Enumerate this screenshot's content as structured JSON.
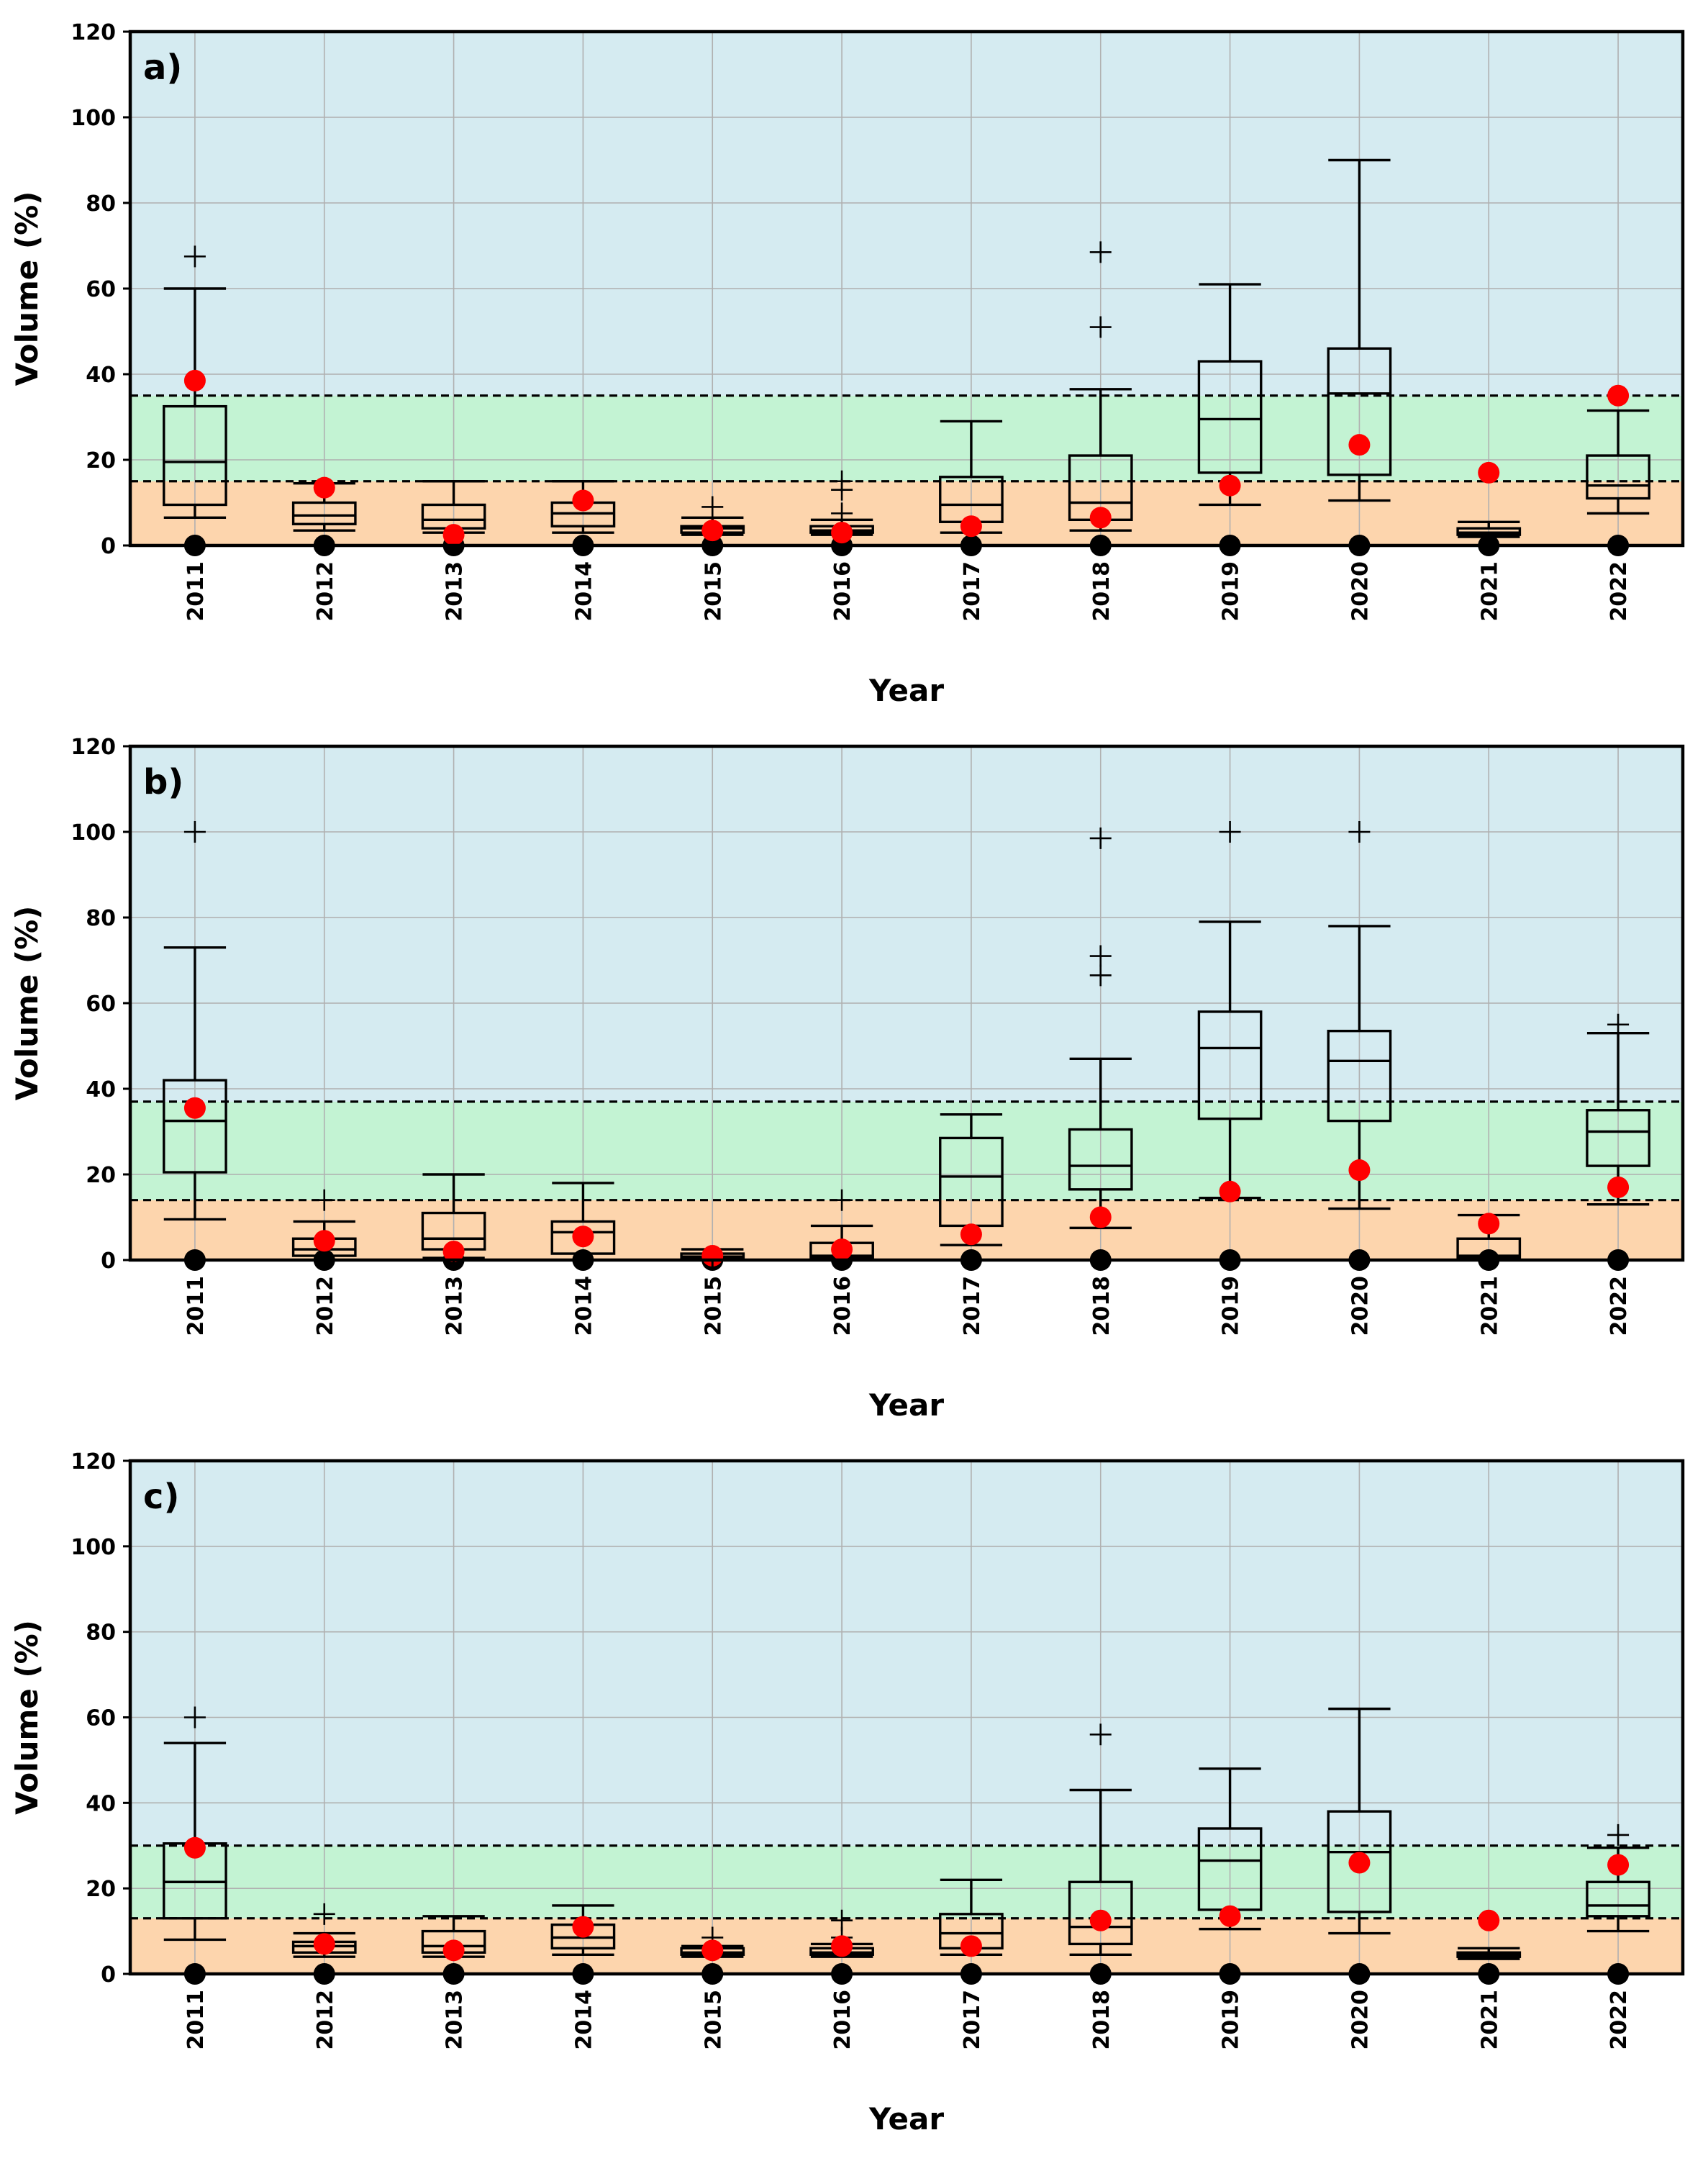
{
  "colors": {
    "band_low": "#fdd5ad",
    "band_mid": "#c3f3d3",
    "band_high": "#d5ebf1",
    "mean_marker": "#ff0000",
    "min_marker": "#000000",
    "grid": "#b0b0b0",
    "box": "#000000"
  },
  "chart_data": [
    {
      "type": "boxplot",
      "panel_label": "a)",
      "xlabel": "Year",
      "ylabel": "Volume (%)",
      "ylim": [
        0,
        120
      ],
      "yticks": [
        0,
        20,
        40,
        60,
        80,
        100,
        120
      ],
      "grid": true,
      "thresholds": [
        15,
        35
      ],
      "bands": [
        {
          "name": "low",
          "from": 0,
          "to": 15
        },
        {
          "name": "mid",
          "from": 15,
          "to": 35
        },
        {
          "name": "high",
          "from": 35,
          "to": 120
        }
      ],
      "categories": [
        "2011",
        "2012",
        "2013",
        "2014",
        "2015",
        "2016",
        "2017",
        "2018",
        "2019",
        "2020",
        "2021",
        "2022"
      ],
      "boxes": [
        {
          "q1": 9.5,
          "median": 19.5,
          "q3": 32.5,
          "whisker_low": 6.5,
          "whisker_high": 60,
          "fliers": [
            67.5
          ],
          "mean_marker": 38.5,
          "min_marker": 0
        },
        {
          "q1": 5,
          "median": 7,
          "q3": 10,
          "whisker_low": 3.5,
          "whisker_high": 14.5,
          "fliers": [],
          "mean_marker": 13.5,
          "min_marker": 0
        },
        {
          "q1": 4,
          "median": 6,
          "q3": 9.5,
          "whisker_low": 3,
          "whisker_high": 15,
          "fliers": [],
          "mean_marker": 2.5,
          "min_marker": 0
        },
        {
          "q1": 4.5,
          "median": 7.5,
          "q3": 10,
          "whisker_low": 3,
          "whisker_high": 15,
          "fliers": [],
          "mean_marker": 10.5,
          "min_marker": 0
        },
        {
          "q1": 3,
          "median": 4,
          "q3": 4.5,
          "whisker_low": 2.5,
          "whisker_high": 6.5,
          "fliers": [
            9
          ],
          "mean_marker": 3.5,
          "min_marker": 0
        },
        {
          "q1": 3,
          "median": 3.5,
          "q3": 4.5,
          "whisker_low": 2.5,
          "whisker_high": 6,
          "fliers": [
            7.5,
            13,
            15
          ],
          "mean_marker": 3,
          "min_marker": 0
        },
        {
          "q1": 5.5,
          "median": 9.5,
          "q3": 16,
          "whisker_low": 3,
          "whisker_high": 29,
          "fliers": [],
          "mean_marker": 4.5,
          "min_marker": 0
        },
        {
          "q1": 6,
          "median": 10,
          "q3": 21,
          "whisker_low": 3.5,
          "whisker_high": 36.5,
          "fliers": [
            51,
            68.5
          ],
          "mean_marker": 6.5,
          "min_marker": 0
        },
        {
          "q1": 17,
          "median": 29.5,
          "q3": 43,
          "whisker_low": 9.5,
          "whisker_high": 61,
          "fliers": [],
          "mean_marker": 14,
          "min_marker": 0
        },
        {
          "q1": 16.5,
          "median": 35.5,
          "q3": 46,
          "whisker_low": 10.5,
          "whisker_high": 90,
          "fliers": [],
          "mean_marker": 23.5,
          "min_marker": 0
        },
        {
          "q1": 2.5,
          "median": 3,
          "q3": 4,
          "whisker_low": 2,
          "whisker_high": 5.5,
          "fliers": [],
          "mean_marker": 17,
          "min_marker": 0
        },
        {
          "q1": 11,
          "median": 14,
          "q3": 21,
          "whisker_low": 7.5,
          "whisker_high": 31.5,
          "fliers": [],
          "mean_marker": 35,
          "min_marker": 0
        }
      ]
    },
    {
      "type": "boxplot",
      "panel_label": "b)",
      "xlabel": "Year",
      "ylabel": "Volume (%)",
      "ylim": [
        0,
        120
      ],
      "yticks": [
        0,
        20,
        40,
        60,
        80,
        100,
        120
      ],
      "grid": true,
      "thresholds": [
        14,
        37
      ],
      "bands": [
        {
          "name": "low",
          "from": 0,
          "to": 14
        },
        {
          "name": "mid",
          "from": 14,
          "to": 37
        },
        {
          "name": "high",
          "from": 37,
          "to": 120
        }
      ],
      "categories": [
        "2011",
        "2012",
        "2013",
        "2014",
        "2015",
        "2016",
        "2017",
        "2018",
        "2019",
        "2020",
        "2021",
        "2022"
      ],
      "boxes": [
        {
          "q1": 20.5,
          "median": 32.5,
          "q3": 42,
          "whisker_low": 9.5,
          "whisker_high": 73,
          "fliers": [
            100
          ],
          "mean_marker": 35.5,
          "min_marker": 0
        },
        {
          "q1": 1,
          "median": 2.5,
          "q3": 5,
          "whisker_low": 0,
          "whisker_high": 9,
          "fliers": [
            14
          ],
          "mean_marker": 4.5,
          "min_marker": 0
        },
        {
          "q1": 2.5,
          "median": 5,
          "q3": 11,
          "whisker_low": 0.5,
          "whisker_high": 20,
          "fliers": [],
          "mean_marker": 2,
          "min_marker": 0
        },
        {
          "q1": 1.5,
          "median": 6.5,
          "q3": 9,
          "whisker_low": 0,
          "whisker_high": 18,
          "fliers": [],
          "mean_marker": 5.5,
          "min_marker": 0
        },
        {
          "q1": 0.3,
          "median": 0.8,
          "q3": 1.5,
          "whisker_low": 0,
          "whisker_high": 2.5,
          "fliers": [],
          "mean_marker": 1,
          "min_marker": 0
        },
        {
          "q1": 0.5,
          "median": 1,
          "q3": 4,
          "whisker_low": 0,
          "whisker_high": 8,
          "fliers": [
            14
          ],
          "mean_marker": 2.5,
          "min_marker": 0
        },
        {
          "q1": 8,
          "median": 19.5,
          "q3": 28.5,
          "whisker_low": 3.5,
          "whisker_high": 34,
          "fliers": [],
          "mean_marker": 6,
          "min_marker": 0
        },
        {
          "q1": 16.5,
          "median": 22,
          "q3": 30.5,
          "whisker_low": 7.5,
          "whisker_high": 47,
          "fliers": [
            66.5,
            71,
            98.5
          ],
          "mean_marker": 10,
          "min_marker": 0
        },
        {
          "q1": 33,
          "median": 49.5,
          "q3": 58,
          "whisker_low": 14.5,
          "whisker_high": 79,
          "fliers": [
            100
          ],
          "mean_marker": 16,
          "min_marker": 0
        },
        {
          "q1": 32.5,
          "median": 46.5,
          "q3": 53.5,
          "whisker_low": 12,
          "whisker_high": 78,
          "fliers": [
            100
          ],
          "mean_marker": 21,
          "min_marker": 0
        },
        {
          "q1": 0.5,
          "median": 1,
          "q3": 5,
          "whisker_low": 0,
          "whisker_high": 10.5,
          "fliers": [],
          "mean_marker": 8.5,
          "min_marker": 0
        },
        {
          "q1": 22,
          "median": 30,
          "q3": 35,
          "whisker_low": 13,
          "whisker_high": 53,
          "fliers": [
            55
          ],
          "mean_marker": 17,
          "min_marker": 0
        }
      ]
    },
    {
      "type": "boxplot",
      "panel_label": "c)",
      "xlabel": "Year",
      "ylabel": "Volume (%)",
      "ylim": [
        0,
        120
      ],
      "yticks": [
        0,
        20,
        40,
        60,
        80,
        100,
        120
      ],
      "grid": true,
      "thresholds": [
        13,
        30
      ],
      "bands": [
        {
          "name": "low",
          "from": 0,
          "to": 13
        },
        {
          "name": "mid",
          "from": 13,
          "to": 30
        },
        {
          "name": "high",
          "from": 30,
          "to": 120
        }
      ],
      "categories": [
        "2011",
        "2012",
        "2013",
        "2014",
        "2015",
        "2016",
        "2017",
        "2018",
        "2019",
        "2020",
        "2021",
        "2022"
      ],
      "boxes": [
        {
          "q1": 13,
          "median": 21.5,
          "q3": 30.5,
          "whisker_low": 8,
          "whisker_high": 54,
          "fliers": [
            60
          ],
          "mean_marker": 29.5,
          "min_marker": 0
        },
        {
          "q1": 5,
          "median": 6.5,
          "q3": 7.5,
          "whisker_low": 4,
          "whisker_high": 9.5,
          "fliers": [
            14
          ],
          "mean_marker": 7,
          "min_marker": 0
        },
        {
          "q1": 5,
          "median": 6.5,
          "q3": 10,
          "whisker_low": 4,
          "whisker_high": 13.5,
          "fliers": [],
          "mean_marker": 5.5,
          "min_marker": 0
        },
        {
          "q1": 6,
          "median": 8.5,
          "q3": 11.5,
          "whisker_low": 4.5,
          "whisker_high": 16,
          "fliers": [],
          "mean_marker": 11,
          "min_marker": 0
        },
        {
          "q1": 4.5,
          "median": 5,
          "q3": 6,
          "whisker_low": 4,
          "whisker_high": 6.5,
          "fliers": [
            8.5
          ],
          "mean_marker": 5.5,
          "min_marker": 0
        },
        {
          "q1": 4.5,
          "median": 5,
          "q3": 6,
          "whisker_low": 4,
          "whisker_high": 7,
          "fliers": [
            8.5,
            12.5
          ],
          "mean_marker": 6.5,
          "min_marker": 0
        },
        {
          "q1": 6,
          "median": 9.5,
          "q3": 14,
          "whisker_low": 4.5,
          "whisker_high": 22,
          "fliers": [],
          "mean_marker": 6.5,
          "min_marker": 0
        },
        {
          "q1": 7,
          "median": 11,
          "q3": 21.5,
          "whisker_low": 4.5,
          "whisker_high": 43,
          "fliers": [
            56
          ],
          "mean_marker": 12.5,
          "min_marker": 0
        },
        {
          "q1": 15,
          "median": 26.5,
          "q3": 34,
          "whisker_low": 10.5,
          "whisker_high": 48,
          "fliers": [],
          "mean_marker": 13.5,
          "min_marker": 0
        },
        {
          "q1": 14.5,
          "median": 28.5,
          "q3": 38,
          "whisker_low": 9.5,
          "whisker_high": 62,
          "fliers": [],
          "mean_marker": 26,
          "min_marker": 0
        },
        {
          "q1": 4,
          "median": 4.5,
          "q3": 5,
          "whisker_low": 3.5,
          "whisker_high": 6,
          "fliers": [],
          "mean_marker": 12.5,
          "min_marker": 0
        },
        {
          "q1": 13.5,
          "median": 16,
          "q3": 21.5,
          "whisker_low": 10,
          "whisker_high": 29.5,
          "fliers": [
            32.5
          ],
          "mean_marker": 25.5,
          "min_marker": 0
        }
      ]
    }
  ]
}
